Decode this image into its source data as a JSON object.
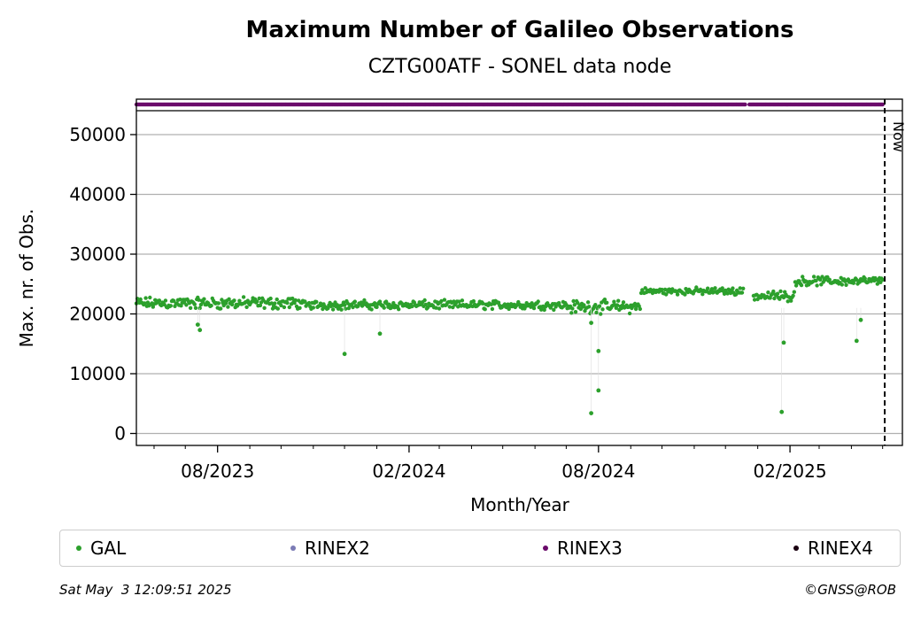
{
  "chart_data": {
    "type": "scatter",
    "title": "Maximum Number of Galileo Observations",
    "subtitle": "CZTG00ATF - SONEL data node",
    "xlabel": "Month/Year",
    "ylabel": "Max. nr. of Obs.",
    "x_ticks": [
      "08/2023",
      "02/2024",
      "08/2024",
      "02/2025"
    ],
    "y_ticks": [
      0,
      10000,
      20000,
      30000,
      40000,
      50000
    ],
    "xlim": [
      "2023-05-15",
      "2025-05-20"
    ],
    "ylim": [
      -2000,
      54000
    ],
    "now_date": "2025-05-03",
    "now_label": "Now",
    "grid": "y",
    "legend_placement": "bottom",
    "series": [
      {
        "name": "GAL",
        "color": "#2ca02c",
        "segments": [
          {
            "start": "2023-05-15",
            "end": "2023-10-20",
            "mean": 21800,
            "spread": 1200
          },
          {
            "start": "2023-10-21",
            "end": "2024-07-01",
            "mean": 21500,
            "spread": 900
          },
          {
            "start": "2024-07-02",
            "end": "2024-09-10",
            "mean": 21200,
            "spread": 1300
          },
          {
            "start": "2024-09-11",
            "end": "2024-12-18",
            "mean": 23800,
            "spread": 700
          },
          {
            "start": "2024-12-28",
            "end": "2025-02-05",
            "mean": 23000,
            "spread": 1000
          },
          {
            "start": "2025-02-06",
            "end": "2025-05-01",
            "mean": 25500,
            "spread": 900
          }
        ],
        "outliers": [
          {
            "x": "2023-07-15",
            "y": 17300
          },
          {
            "x": "2023-07-13",
            "y": 18200
          },
          {
            "x": "2023-12-01",
            "y": 13300
          },
          {
            "x": "2024-01-04",
            "y": 16700
          },
          {
            "x": "2024-07-25",
            "y": 3400
          },
          {
            "x": "2024-08-01",
            "y": 7200
          },
          {
            "x": "2024-08-01",
            "y": 13800
          },
          {
            "x": "2024-07-25",
            "y": 18500
          },
          {
            "x": "2025-01-24",
            "y": 3600
          },
          {
            "x": "2025-01-26",
            "y": 15200
          },
          {
            "x": "2025-04-06",
            "y": 15500
          },
          {
            "x": "2025-04-10",
            "y": 19000
          }
        ]
      },
      {
        "name": "RINEX2",
        "color": "#7b7bb5",
        "segments": []
      },
      {
        "name": "RINEX3",
        "color": "#6a0a6a",
        "strip": [
          {
            "start": "2023-05-15",
            "end": "2024-12-20"
          },
          {
            "start": "2024-12-24",
            "end": "2025-05-01"
          }
        ]
      },
      {
        "name": "RINEX4",
        "color": "#1a0010",
        "segments": []
      }
    ]
  },
  "footer": {
    "timestamp": "Sat May  3 12:09:51 2025",
    "copyright": "©GNSS@ROB"
  }
}
